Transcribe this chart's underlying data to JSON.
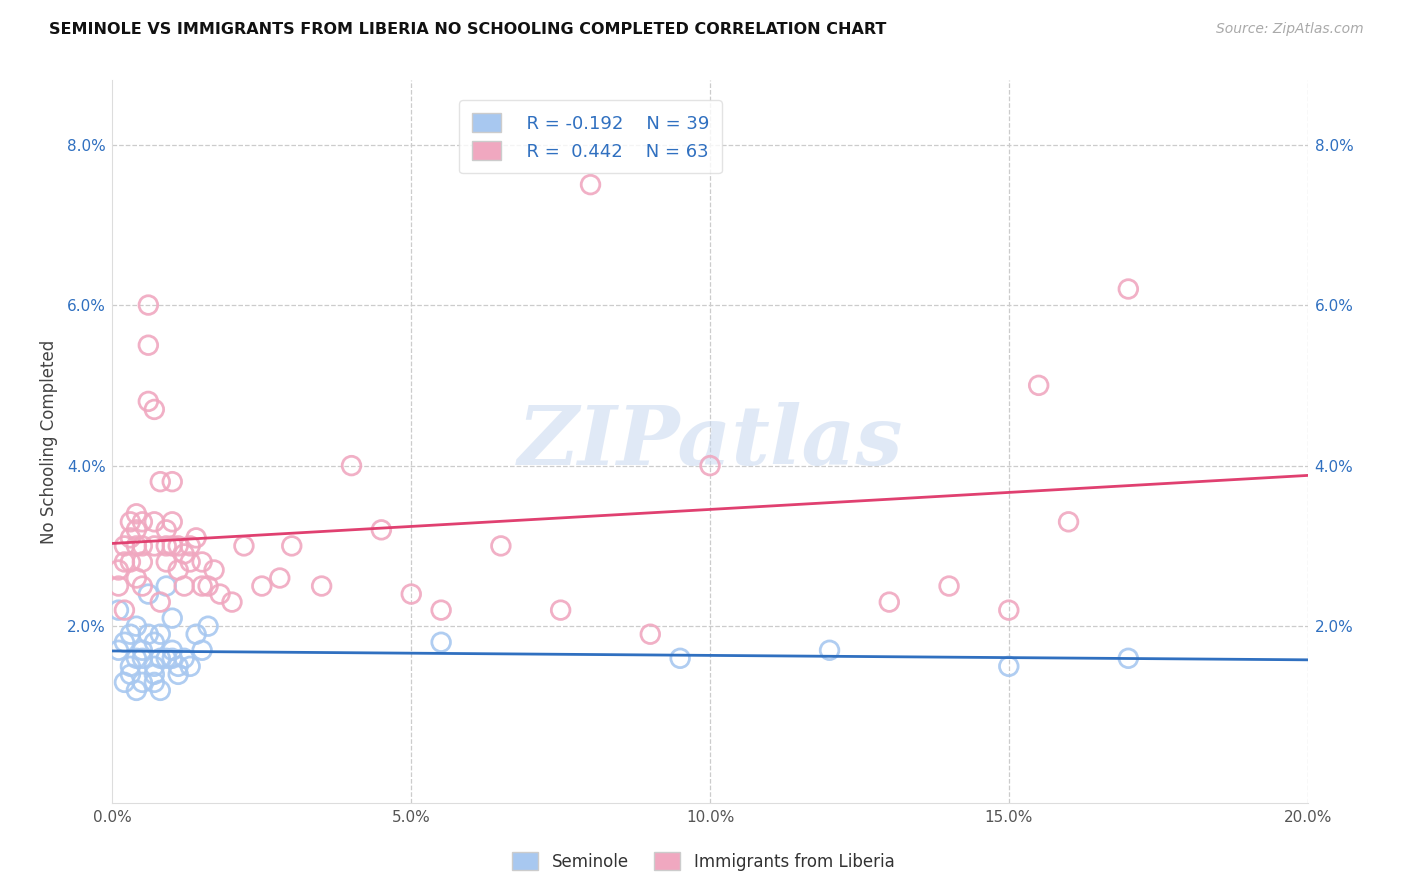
{
  "title": "SEMINOLE VS IMMIGRANTS FROM LIBERIA NO SCHOOLING COMPLETED CORRELATION CHART",
  "source": "Source: ZipAtlas.com",
  "ylabel": "No Schooling Completed",
  "xlim": [
    0.0,
    0.2
  ],
  "ylim": [
    -0.002,
    0.088
  ],
  "xticks": [
    0.0,
    0.05,
    0.1,
    0.15,
    0.2
  ],
  "yticks": [
    0.0,
    0.02,
    0.04,
    0.06,
    0.08
  ],
  "xtick_labels": [
    "0.0%",
    "5.0%",
    "10.0%",
    "15.0%",
    "20.0%"
  ],
  "ytick_labels": [
    "",
    "2.0%",
    "4.0%",
    "6.0%",
    "8.0%"
  ],
  "legend_r1": "R = -0.192",
  "legend_n1": "N = 39",
  "legend_r2": "R =  0.442",
  "legend_n2": "N = 63",
  "blue_color": "#a8c8f0",
  "pink_color": "#f0a8c0",
  "blue_line_color": "#3070c0",
  "pink_line_color": "#e04070",
  "watermark": "ZIPatlas",
  "watermark_color": "#c8d8f0",
  "blue_x": [
    0.001,
    0.001,
    0.002,
    0.002,
    0.003,
    0.003,
    0.003,
    0.004,
    0.004,
    0.004,
    0.005,
    0.005,
    0.005,
    0.006,
    0.006,
    0.007,
    0.007,
    0.007,
    0.007,
    0.008,
    0.008,
    0.008,
    0.009,
    0.009,
    0.01,
    0.01,
    0.01,
    0.011,
    0.011,
    0.012,
    0.013,
    0.014,
    0.015,
    0.016,
    0.055,
    0.095,
    0.12,
    0.15,
    0.17
  ],
  "blue_y": [
    0.022,
    0.017,
    0.018,
    0.013,
    0.019,
    0.015,
    0.014,
    0.02,
    0.016,
    0.012,
    0.016,
    0.017,
    0.013,
    0.024,
    0.019,
    0.013,
    0.018,
    0.015,
    0.014,
    0.012,
    0.019,
    0.016,
    0.025,
    0.016,
    0.021,
    0.017,
    0.016,
    0.015,
    0.014,
    0.016,
    0.015,
    0.019,
    0.017,
    0.02,
    0.018,
    0.016,
    0.017,
    0.015,
    0.016
  ],
  "pink_x": [
    0.001,
    0.001,
    0.002,
    0.002,
    0.002,
    0.003,
    0.003,
    0.003,
    0.004,
    0.004,
    0.004,
    0.004,
    0.005,
    0.005,
    0.005,
    0.005,
    0.006,
    0.006,
    0.006,
    0.007,
    0.007,
    0.007,
    0.008,
    0.008,
    0.009,
    0.009,
    0.009,
    0.01,
    0.01,
    0.01,
    0.011,
    0.011,
    0.012,
    0.012,
    0.013,
    0.013,
    0.014,
    0.015,
    0.015,
    0.016,
    0.017,
    0.018,
    0.02,
    0.022,
    0.025,
    0.028,
    0.03,
    0.035,
    0.04,
    0.045,
    0.05,
    0.055,
    0.065,
    0.075,
    0.08,
    0.09,
    0.1,
    0.13,
    0.14,
    0.15,
    0.155,
    0.16,
    0.17
  ],
  "pink_y": [
    0.027,
    0.025,
    0.028,
    0.03,
    0.022,
    0.033,
    0.028,
    0.031,
    0.034,
    0.032,
    0.03,
    0.026,
    0.033,
    0.03,
    0.025,
    0.028,
    0.048,
    0.06,
    0.055,
    0.047,
    0.03,
    0.033,
    0.038,
    0.023,
    0.028,
    0.03,
    0.032,
    0.033,
    0.03,
    0.038,
    0.027,
    0.03,
    0.025,
    0.029,
    0.028,
    0.03,
    0.031,
    0.025,
    0.028,
    0.025,
    0.027,
    0.024,
    0.023,
    0.03,
    0.025,
    0.026,
    0.03,
    0.025,
    0.04,
    0.032,
    0.024,
    0.022,
    0.03,
    0.022,
    0.075,
    0.019,
    0.04,
    0.023,
    0.025,
    0.022,
    0.05,
    0.033,
    0.062
  ]
}
